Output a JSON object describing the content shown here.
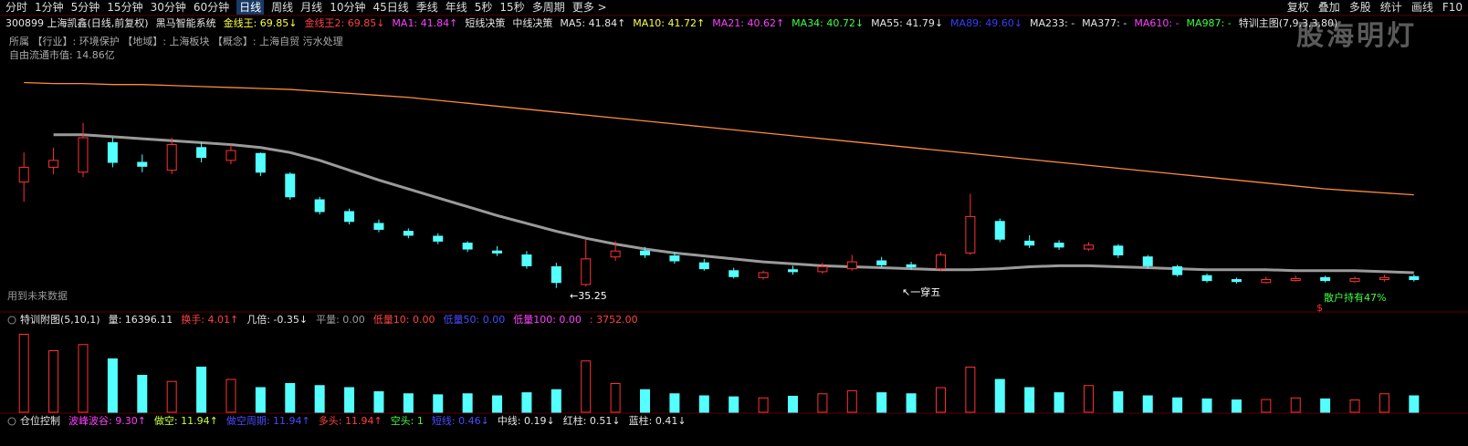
{
  "toolbar": {
    "tabs": [
      "分时",
      "1分钟",
      "5分钟",
      "15分钟",
      "30分钟",
      "60分钟",
      "日线",
      "周线",
      "月线",
      "10分钟",
      "45日线",
      "季线",
      "年线",
      "5秒",
      "15秒",
      "多周期",
      "更多 >"
    ],
    "active": "日线",
    "right": [
      "复权",
      "叠加",
      "多股",
      "统计",
      "画线",
      "F10"
    ]
  },
  "header": {
    "items": [
      {
        "text": "300899 上海凯鑫(日线,前复权)",
        "color": "#e6e6e6"
      },
      {
        "text": "黑马智能系统",
        "color": "#e6e6e6"
      },
      {
        "text": "金线王: 69.85↓",
        "color": "#ffff40"
      },
      {
        "text": "金线王2: 69.85↓",
        "color": "#ff4040"
      },
      {
        "text": "MA1: 41.84↑",
        "color": "#ff40ff"
      },
      {
        "text": "短线决策",
        "color": "#e6e6e6"
      },
      {
        "text": "中线决策",
        "color": "#e6e6e6"
      },
      {
        "text": "MA5: 41.84↑",
        "color": "#e6e6e6"
      },
      {
        "text": "MA10: 41.72↑",
        "color": "#ffff40"
      },
      {
        "text": "MA21: 40.62↑",
        "color": "#ff40ff"
      },
      {
        "text": "MA34: 40.72↓",
        "color": "#40ff40"
      },
      {
        "text": "MA55: 41.79↓",
        "color": "#e6e6e6"
      },
      {
        "text": "MA89: 49.60↓",
        "color": "#3a3aff"
      },
      {
        "text": "MA233: -",
        "color": "#e6e6e6"
      },
      {
        "text": "MA377: -",
        "color": "#e6e6e6"
      },
      {
        "text": "MA610: -",
        "color": "#ff40ff"
      },
      {
        "text": "MA987: -",
        "color": "#40ff40"
      },
      {
        "text": "特训主图(7,9,3,3,80)",
        "color": "#e6e6e6"
      }
    ]
  },
  "info": [
    "所属  【行业】: 环境保护   【地域】: 上海板块   【概念】: 上海自贸 污水处理",
    "自由流通市值: 14.86亿"
  ],
  "watermark": "股海明灯",
  "annotations": {
    "low": "←35.25",
    "cross": "↖一穿五",
    "future": "用到未来数据",
    "holders": "散户持有47%",
    "dollar": "$"
  },
  "volume_header": {
    "items": [
      {
        "text": "特训附图(5,10,1)",
        "color": "#e6e6e6"
      },
      {
        "text": "量: 16396.11",
        "color": "#e6e6e6"
      },
      {
        "text": "换手: 4.01↑",
        "color": "#ff4040"
      },
      {
        "text": "几倍: -0.35↓",
        "color": "#e6e6e6"
      },
      {
        "text": "平量: 0.00",
        "color": "#999999"
      },
      {
        "text": "低量10: 0.00",
        "color": "#ff4040"
      },
      {
        "text": "低量50: 0.00",
        "color": "#4a4aff"
      },
      {
        "text": "低量100: 0.00",
        "color": "#ff40ff"
      },
      {
        "text": ": 3752.00",
        "color": "#ff4040"
      }
    ]
  },
  "position_header": {
    "items": [
      {
        "text": "仓位控制",
        "color": "#e6e6e6"
      },
      {
        "text": "波峰波谷: 9.30↑",
        "color": "#ff40ff"
      },
      {
        "text": "做空: 11.94↑",
        "color": "#c8ff40"
      },
      {
        "text": "做空周期: 11.94↑",
        "color": "#4a4aff"
      },
      {
        "text": "多头: 11.94↑",
        "color": "#ff4040"
      },
      {
        "text": "空头: 1",
        "color": "#40ff40"
      },
      {
        "text": "短线: 0.46↓",
        "color": "#4a4aff"
      },
      {
        "text": "中线: 0.19↓",
        "color": "#e6e6e6"
      },
      {
        "text": "红柱: 0.51↓",
        "color": "#e6e6e6"
      },
      {
        "text": "蓝柱: 0.41↓",
        "color": "#e6e6e6"
      }
    ]
  },
  "chart_data": {
    "type": "candlestick",
    "ylim": [
      33,
      58
    ],
    "up_color": "#ff3232",
    "down_color": "#54ffff",
    "open": [
      46.0,
      47.5,
      47.0,
      50.0,
      48.0,
      47.2,
      49.5,
      48.2,
      48.9,
      46.8,
      44.2,
      43.0,
      41.8,
      41.0,
      40.5,
      39.8,
      39.0,
      38.6,
      37.4,
      35.6,
      38.4,
      39.0,
      38.5,
      37.8,
      37.0,
      36.3,
      37.1,
      36.9,
      37.2,
      38.0,
      37.6,
      37.2,
      38.8,
      42.0,
      40.0,
      39.8,
      39.2,
      39.5,
      38.4,
      37.4,
      36.5,
      36.1,
      35.8,
      36.0,
      36.3,
      35.9,
      36.1,
      36.4
    ],
    "high": [
      49.0,
      49.5,
      52.0,
      50.5,
      48.8,
      50.5,
      50.0,
      49.8,
      49.0,
      47.0,
      44.5,
      43.3,
      42.2,
      41.3,
      40.8,
      40.0,
      39.5,
      39.0,
      37.8,
      40.2,
      40.0,
      39.4,
      38.9,
      38.2,
      37.3,
      37.0,
      37.5,
      37.8,
      38.6,
      38.4,
      37.9,
      38.9,
      44.8,
      42.3,
      40.6,
      40.1,
      39.9,
      39.7,
      38.6,
      37.6,
      36.7,
      36.3,
      36.4,
      36.5,
      36.5,
      36.4,
      36.6,
      36.6
    ],
    "low": [
      44.0,
      46.8,
      46.5,
      47.5,
      47.0,
      46.8,
      48.0,
      47.8,
      46.6,
      44.2,
      42.7,
      41.7,
      40.9,
      40.3,
      39.7,
      38.9,
      38.5,
      37.2,
      35.25,
      35.4,
      38.0,
      38.3,
      37.7,
      37.0,
      36.2,
      36.1,
      36.6,
      36.7,
      37.0,
      37.3,
      37.1,
      37.0,
      38.6,
      39.9,
      39.3,
      39.1,
      39.0,
      38.3,
      37.2,
      36.4,
      35.8,
      35.7,
      35.7,
      35.9,
      35.8,
      35.8,
      35.9,
      35.9
    ],
    "close": [
      47.5,
      48.2,
      50.5,
      48.0,
      47.6,
      49.8,
      48.5,
      49.2,
      47.0,
      44.5,
      43.0,
      42.0,
      41.2,
      40.6,
      40.0,
      39.2,
      38.8,
      37.5,
      35.8,
      38.2,
      39.0,
      38.6,
      38.0,
      37.2,
      36.4,
      36.8,
      36.9,
      37.4,
      37.9,
      37.6,
      37.4,
      38.6,
      42.5,
      40.2,
      39.6,
      39.4,
      39.6,
      38.6,
      37.5,
      36.6,
      36.0,
      35.9,
      36.1,
      36.2,
      36.0,
      36.2,
      36.3,
      36.1
    ],
    "lines": [
      {
        "color": "#ff8c3a",
        "values": [
          56.1,
          56.0,
          56.0,
          55.9,
          55.9,
          55.8,
          55.7,
          55.6,
          55.5,
          55.4,
          55.2,
          55.0,
          54.8,
          54.6,
          54.3,
          54.0,
          53.7,
          53.4,
          53.1,
          52.8,
          52.5,
          52.2,
          51.9,
          51.6,
          51.3,
          51.0,
          50.7,
          50.4,
          50.1,
          49.8,
          49.5,
          49.2,
          48.9,
          48.6,
          48.3,
          48.0,
          47.7,
          47.4,
          47.1,
          46.8,
          46.5,
          46.2,
          45.9,
          45.6,
          45.3,
          45.1,
          44.9,
          44.7
        ]
      },
      {
        "color": "#9a9a9a",
        "values": [
          null,
          50.8,
          50.8,
          50.6,
          50.4,
          50.2,
          50.0,
          49.8,
          49.5,
          49.0,
          48.2,
          47.2,
          46.2,
          45.3,
          44.4,
          43.5,
          42.6,
          41.8,
          41.0,
          40.3,
          39.7,
          39.2,
          38.8,
          38.5,
          38.2,
          37.9,
          37.7,
          37.5,
          37.4,
          37.3,
          37.2,
          37.1,
          37.1,
          37.2,
          37.4,
          37.5,
          37.5,
          37.4,
          37.3,
          37.2,
          37.1,
          37.1,
          37.1,
          37.0,
          37.0,
          37.0,
          36.9,
          36.8
        ]
      }
    ],
    "volume": [
      38000,
      30000,
      33000,
      26000,
      18000,
      15000,
      22000,
      16000,
      12000,
      14000,
      13000,
      12000,
      10000,
      9000,
      8500,
      9000,
      8000,
      9500,
      11000,
      25000,
      14000,
      11000,
      9000,
      8000,
      7500,
      7000,
      7800,
      9000,
      10500,
      9500,
      9000,
      12000,
      22000,
      16000,
      12000,
      9500,
      13000,
      10000,
      8000,
      7000,
      6500,
      6000,
      6200,
      7000,
      6500,
      6000,
      9000,
      8000
    ],
    "volume_lim": [
      0,
      40000
    ]
  }
}
